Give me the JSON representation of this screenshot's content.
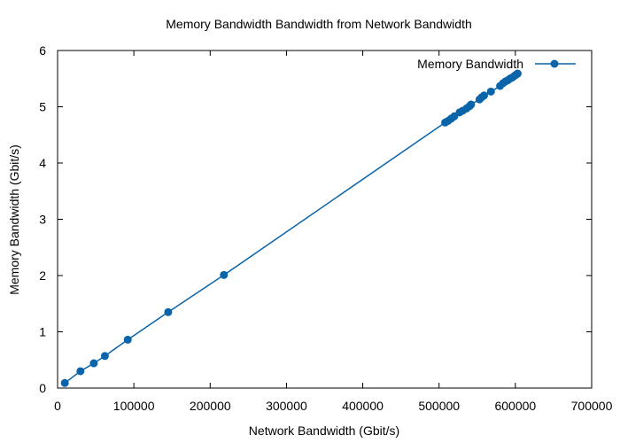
{
  "chart_data": {
    "type": "line",
    "title": "Memory Bandwidth Bandwidth from Network Bandwidth",
    "xlabel": "Network Bandwidth (Gbit/s)",
    "ylabel": "Memory Bandwidth (Gbit/s)",
    "xlim": [
      0,
      700000
    ],
    "ylim": [
      0,
      6
    ],
    "xticks": [
      0,
      100000,
      200000,
      300000,
      400000,
      500000,
      600000,
      700000
    ],
    "yticks": [
      0,
      1,
      2,
      3,
      4,
      5,
      6
    ],
    "grid": false,
    "legend_position": "top-right",
    "series_color": "#0a64aa",
    "series": [
      {
        "name": "Memory Bandwidth",
        "x": [
          9500,
          30000,
          47500,
          62000,
          92000,
          145000,
          218000,
          508000,
          512000,
          516000,
          520000,
          527000,
          531000,
          536000,
          540000,
          542000,
          553000,
          556000,
          559000,
          568000,
          580000,
          584000,
          587000,
          590000,
          593000,
          596000,
          599000,
          601000,
          603000
        ],
        "y": [
          0.09,
          0.3,
          0.44,
          0.57,
          0.86,
          1.35,
          2.01,
          4.72,
          4.75,
          4.79,
          4.83,
          4.9,
          4.93,
          4.97,
          5.01,
          5.04,
          5.13,
          5.17,
          5.2,
          5.27,
          5.37,
          5.42,
          5.45,
          5.47,
          5.5,
          5.52,
          5.55,
          5.57,
          5.59
        ]
      }
    ]
  }
}
